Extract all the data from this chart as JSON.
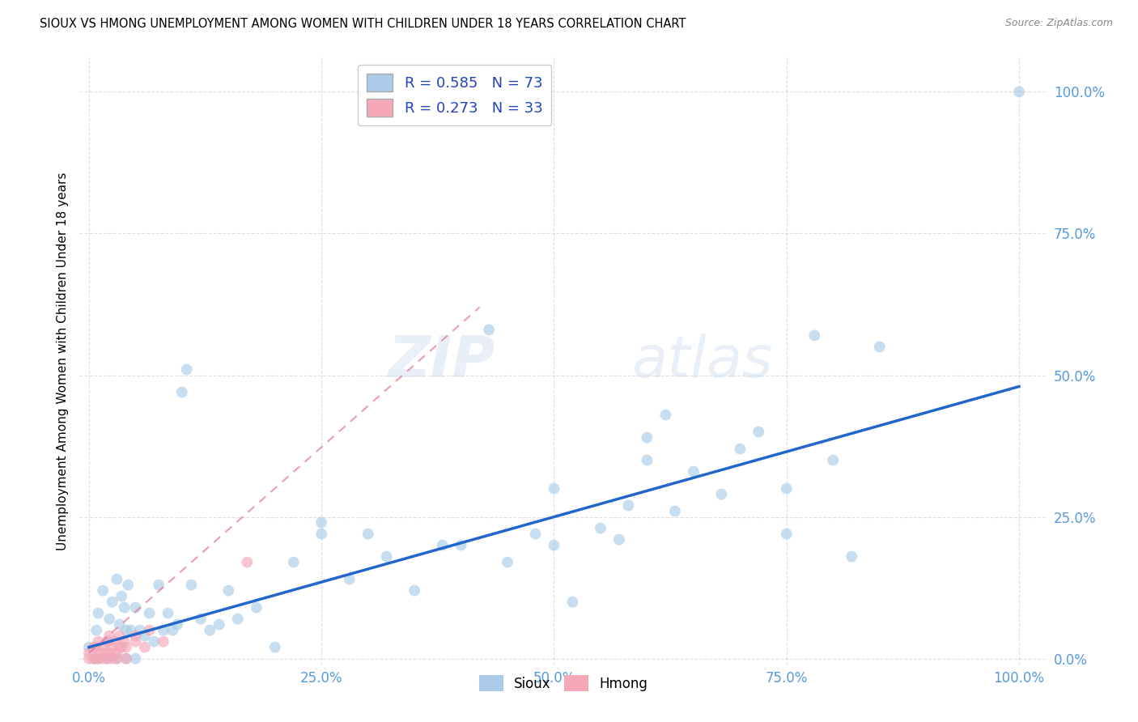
{
  "title": "SIOUX VS HMONG UNEMPLOYMENT AMONG WOMEN WITH CHILDREN UNDER 18 YEARS CORRELATION CHART",
  "source": "Source: ZipAtlas.com",
  "ylabel": "Unemployment Among Women with Children Under 18 years",
  "sioux_R": 0.585,
  "sioux_N": 73,
  "hmong_R": 0.273,
  "hmong_N": 33,
  "sioux_color": "#aacce8",
  "hmong_color": "#f4a8b8",
  "trend_sioux_color": "#2266cc",
  "trend_hmong_color": "#e87898",
  "watermark_zip": "ZIP",
  "watermark_atlas": "atlas",
  "sioux_x": [
    0.0,
    0.005,
    0.008,
    0.01,
    0.01,
    0.015,
    0.02,
    0.02,
    0.022,
    0.025,
    0.03,
    0.03,
    0.033,
    0.035,
    0.038,
    0.04,
    0.04,
    0.042,
    0.045,
    0.05,
    0.05,
    0.055,
    0.06,
    0.065,
    0.07,
    0.075,
    0.08,
    0.085,
    0.09,
    0.095,
    0.1,
    0.105,
    0.11,
    0.12,
    0.13,
    0.14,
    0.15,
    0.16,
    0.18,
    0.2,
    0.22,
    0.25,
    0.25,
    0.28,
    0.3,
    0.32,
    0.35,
    0.38,
    0.4,
    0.43,
    0.45,
    0.48,
    0.5,
    0.5,
    0.52,
    0.55,
    0.57,
    0.58,
    0.6,
    0.6,
    0.62,
    0.63,
    0.65,
    0.68,
    0.7,
    0.72,
    0.75,
    0.75,
    0.78,
    0.8,
    0.82,
    0.85,
    1.0
  ],
  "sioux_y": [
    0.02,
    0.0,
    0.05,
    0.0,
    0.08,
    0.12,
    0.0,
    0.03,
    0.07,
    0.1,
    0.0,
    0.14,
    0.06,
    0.11,
    0.09,
    0.0,
    0.05,
    0.13,
    0.05,
    0.0,
    0.09,
    0.05,
    0.04,
    0.08,
    0.03,
    0.13,
    0.05,
    0.08,
    0.05,
    0.06,
    0.47,
    0.51,
    0.13,
    0.07,
    0.05,
    0.06,
    0.12,
    0.07,
    0.09,
    0.02,
    0.17,
    0.22,
    0.24,
    0.14,
    0.22,
    0.18,
    0.12,
    0.2,
    0.2,
    0.58,
    0.17,
    0.22,
    0.2,
    0.3,
    0.1,
    0.23,
    0.21,
    0.27,
    0.35,
    0.39,
    0.43,
    0.26,
    0.33,
    0.29,
    0.37,
    0.4,
    0.22,
    0.3,
    0.57,
    0.35,
    0.18,
    0.55,
    1.0
  ],
  "hmong_x": [
    0.0,
    0.0,
    0.005,
    0.005,
    0.008,
    0.008,
    0.01,
    0.01,
    0.012,
    0.015,
    0.015,
    0.018,
    0.02,
    0.02,
    0.022,
    0.022,
    0.025,
    0.025,
    0.028,
    0.03,
    0.03,
    0.033,
    0.033,
    0.035,
    0.038,
    0.04,
    0.04,
    0.05,
    0.05,
    0.06,
    0.065,
    0.08,
    0.17
  ],
  "hmong_y": [
    0.0,
    0.01,
    0.0,
    0.02,
    0.0,
    0.02,
    0.0,
    0.03,
    0.01,
    0.0,
    0.02,
    0.01,
    0.0,
    0.03,
    0.01,
    0.04,
    0.0,
    0.02,
    0.03,
    0.0,
    0.01,
    0.02,
    0.04,
    0.02,
    0.03,
    0.0,
    0.02,
    0.03,
    0.04,
    0.02,
    0.05,
    0.03,
    0.17
  ],
  "sioux_trend_x0": 0.0,
  "sioux_trend_x1": 1.0,
  "sioux_trend_y0": 0.02,
  "sioux_trend_y1": 0.48,
  "hmong_trend_x0": 0.0,
  "hmong_trend_x1": 0.42,
  "hmong_trend_y0": 0.01,
  "hmong_trend_y1": 0.62,
  "xmin": 0.0,
  "xmax": 1.0,
  "ymin": 0.0,
  "ymax": 1.0,
  "xticks": [
    0.0,
    0.25,
    0.5,
    0.75,
    1.0
  ],
  "yticks": [
    0.0,
    0.25,
    0.5,
    0.75,
    1.0
  ],
  "xticklabels": [
    "0.0%",
    "25.0%",
    "50.0%",
    "75.0%",
    "100.0%"
  ],
  "yticklabels": [
    "0.0%",
    "25.0%",
    "50.0%",
    "75.0%",
    "100.0%"
  ],
  "marker_size": 100,
  "marker_alpha": 0.65,
  "grid_color": "#cccccc",
  "grid_alpha": 0.6,
  "tick_color": "#5599dd",
  "legend_label_color": "#2244bb"
}
